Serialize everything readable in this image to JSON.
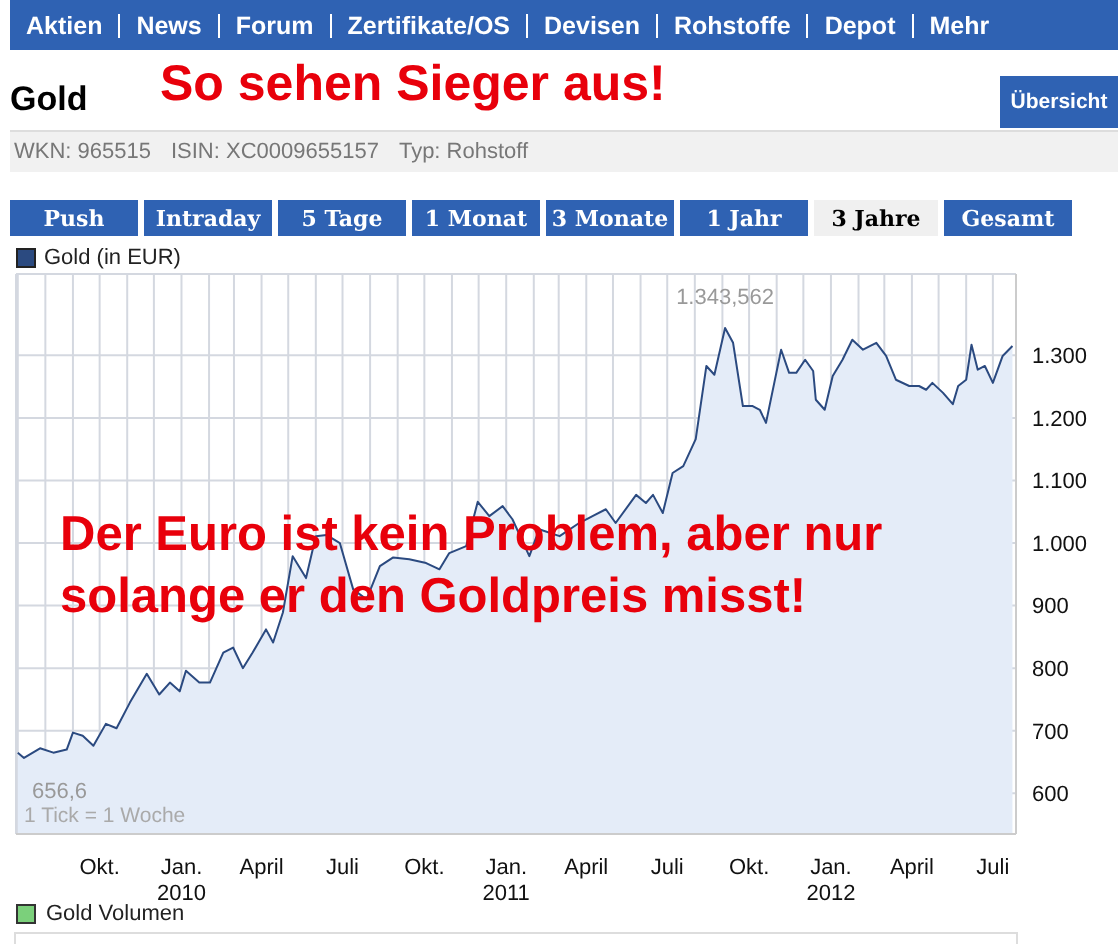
{
  "chart_data": {
    "type": "area",
    "title": "So sehen Sieger aus!",
    "annotations": [
      "Aktien",
      "News",
      "Forum",
      "Zertifikate/OS",
      "Devisen",
      "Rohstoffe",
      "Depot",
      "Mehr",
      "Gold",
      "Übersicht",
      "WKN: 965515",
      "ISIN: XC0009655157",
      "Typ: Rohstoff",
      "Push",
      "Intraday",
      "5 Tage",
      "1 Monat",
      "3 Monate",
      "1 Jahr",
      "3 Jahre",
      "Gesamt",
      "Der Euro ist kein Problem, aber nur solange er den Goldpreis misst!",
      "1 Tick = 1 Woche",
      "Gold Volumen",
      {
        "text": "656,6",
        "x": "2009-07-08",
        "y": 656.6
      },
      {
        "text": "1.343,562",
        "x": "2011-09-04",
        "y": 1343.562
      }
    ],
    "x": [
      "2009-07-01",
      "2009-07-08",
      "2009-07-26",
      "2009-08-10",
      "2009-08-25",
      "2009-09-01",
      "2009-09-12",
      "2009-09-24",
      "2009-10-08",
      "2009-10-20",
      "2009-11-04",
      "2009-11-23",
      "2009-12-07",
      "2009-12-19",
      "2009-12-30",
      "2010-01-06",
      "2010-01-21",
      "2010-02-02",
      "2010-02-17",
      "2010-02-28",
      "2010-03-11",
      "2010-03-22",
      "2010-04-06",
      "2010-04-14",
      "2010-04-25",
      "2010-05-06",
      "2010-05-21",
      "2010-06-01",
      "2010-06-13",
      "2010-06-28",
      "2010-07-13",
      "2010-07-28",
      "2010-08-12",
      "2010-08-27",
      "2010-09-14",
      "2010-10-03",
      "2010-10-18",
      "2010-10-29",
      "2010-11-17",
      "2010-11-30",
      "2010-12-13",
      "2010-12-28",
      "2011-01-08",
      "2011-01-27",
      "2011-02-07",
      "2011-03-02",
      "2011-03-24",
      "2011-04-08",
      "2011-04-23",
      "2011-05-04",
      "2011-05-27",
      "2011-06-07",
      "2011-06-15",
      "2011-06-26",
      "2011-07-07",
      "2011-07-19",
      "2011-08-02",
      "2011-08-14",
      "2011-08-23",
      "2011-09-04",
      "2011-09-13",
      "2011-09-24",
      "2011-10-05",
      "2011-10-13",
      "2011-10-20",
      "2011-11-06",
      "2011-11-15",
      "2011-11-23",
      "2011-12-03",
      "2011-12-12",
      "2011-12-15",
      "2011-12-25",
      "2012-01-03",
      "2012-01-14",
      "2012-01-25",
      "2012-02-06",
      "2012-02-21",
      "2012-03-03",
      "2012-03-14",
      "2012-03-29",
      "2012-04-09",
      "2012-04-17",
      "2012-04-24",
      "2012-05-06",
      "2012-05-17",
      "2012-05-23",
      "2012-06-01",
      "2012-06-07",
      "2012-06-14",
      "2012-06-22",
      "2012-07-01",
      "2012-07-12",
      "2012-07-23"
    ],
    "series": [
      {
        "name": "Gold (in EUR)",
        "color": "#2b4a80",
        "values": [
          665,
          656.6,
          672,
          665,
          670,
          697,
          692,
          676,
          711,
          704,
          745,
          791,
          758,
          777,
          763,
          796,
          777,
          777,
          825,
          833,
          800,
          825,
          862,
          841,
          889,
          979,
          944,
          1011,
          1013,
          1000,
          926,
          910,
          963,
          977,
          974,
          968,
          958,
          984,
          995,
          1066,
          1043,
          1059,
          1038,
          979,
          1022,
          1011,
          1032,
          1043,
          1054,
          1032,
          1077,
          1064,
          1077,
          1048,
          1112,
          1123,
          1166,
          1283,
          1269,
          1343.562,
          1320,
          1219,
          1219,
          1213,
          1192,
          1309,
          1272,
          1272,
          1293,
          1275,
          1229,
          1213,
          1267,
          1293,
          1325,
          1309,
          1320,
          1299,
          1261,
          1251,
          1251,
          1245,
          1256,
          1240,
          1222,
          1251,
          1261,
          1317,
          1277,
          1283,
          1256,
          1299,
          1315
        ]
      }
    ],
    "xlim": [
      "2009-06-29",
      "2012-07-27"
    ],
    "xticks": [
      {
        "value": "2009-07-01",
        "label": null
      },
      {
        "value": "2009-08-01",
        "label": null
      },
      {
        "value": "2009-09-01",
        "label": null
      },
      {
        "value": "2009-10-01",
        "label": "Okt."
      },
      {
        "value": "2009-11-01",
        "label": null
      },
      {
        "value": "2009-12-01",
        "label": null
      },
      {
        "value": "2010-01-01",
        "label": "Jan.\n2010"
      },
      {
        "value": "2010-02-01",
        "label": null
      },
      {
        "value": "2010-03-01",
        "label": null
      },
      {
        "value": "2010-04-01",
        "label": "April"
      },
      {
        "value": "2010-05-01",
        "label": null
      },
      {
        "value": "2010-06-01",
        "label": null
      },
      {
        "value": "2010-07-01",
        "label": "Juli"
      },
      {
        "value": "2010-08-01",
        "label": null
      },
      {
        "value": "2010-09-01",
        "label": null
      },
      {
        "value": "2010-10-01",
        "label": "Okt."
      },
      {
        "value": "2010-11-01",
        "label": null
      },
      {
        "value": "2010-12-01",
        "label": null
      },
      {
        "value": "2011-01-01",
        "label": "Jan.\n2011"
      },
      {
        "value": "2011-02-01",
        "label": null
      },
      {
        "value": "2011-03-01",
        "label": null
      },
      {
        "value": "2011-04-01",
        "label": "April"
      },
      {
        "value": "2011-05-01",
        "label": null
      },
      {
        "value": "2011-06-01",
        "label": null
      },
      {
        "value": "2011-07-01",
        "label": "Juli"
      },
      {
        "value": "2011-08-01",
        "label": null
      },
      {
        "value": "2011-09-01",
        "label": null
      },
      {
        "value": "2011-10-01",
        "label": "Okt."
      },
      {
        "value": "2011-11-01",
        "label": null
      },
      {
        "value": "2011-12-01",
        "label": null
      },
      {
        "value": "2012-01-01",
        "label": "Jan.\n2012"
      },
      {
        "value": "2012-02-01",
        "label": null
      },
      {
        "value": "2012-03-01",
        "label": null
      },
      {
        "value": "2012-04-01",
        "label": "April"
      },
      {
        "value": "2012-05-01",
        "label": null
      },
      {
        "value": "2012-06-01",
        "label": null
      },
      {
        "value": "2012-07-01",
        "label": "Juli"
      }
    ],
    "ylim": [
      535,
      1430
    ],
    "yticks": [
      600,
      700,
      800,
      900,
      {
        "value": 1000,
        "label": "1.000"
      },
      {
        "value": 1100,
        "label": "1.100"
      },
      {
        "value": 1200,
        "label": "1.200"
      },
      {
        "value": 1300,
        "label": "1.300"
      }
    ],
    "grid": true,
    "legend": "top left"
  }
}
